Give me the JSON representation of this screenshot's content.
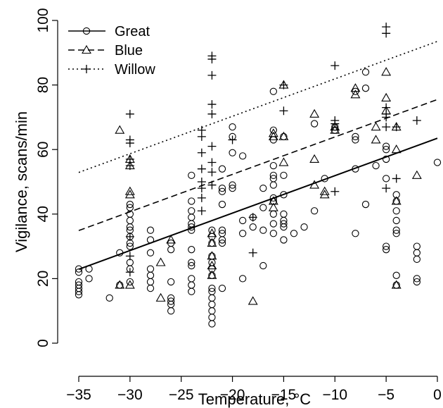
{
  "chart_data": {
    "type": "scatter",
    "xlabel": "Temperature, °C",
    "ylabel": "Vigilance, scans/min",
    "xlim": [
      -36,
      1
    ],
    "ylim": [
      -2,
      103
    ],
    "x_ticks": [
      -35,
      -30,
      -25,
      -20,
      -15,
      -10,
      -5,
      0
    ],
    "y_ticks": [
      0,
      20,
      40,
      60,
      80,
      100
    ],
    "x_tick_labels": [
      "−35",
      "−30",
      "−25",
      "−20",
      "−15",
      "−10",
      "−5",
      "0"
    ],
    "y_tick_labels": [
      "0",
      "20",
      "40",
      "60",
      "80",
      "100"
    ],
    "grid": false,
    "legend_position": "top-left",
    "series": [
      {
        "name": "Great",
        "marker": "circle",
        "line_style": "solid",
        "fit": {
          "intercept": 63.5,
          "slope": 1.16
        },
        "points": [
          [
            -35,
            23
          ],
          [
            -35,
            22
          ],
          [
            -35,
            19
          ],
          [
            -35,
            18
          ],
          [
            -35,
            17
          ],
          [
            -35,
            16
          ],
          [
            -35,
            15
          ],
          [
            -34,
            23
          ],
          [
            -34,
            20
          ],
          [
            -32,
            14
          ],
          [
            -31,
            28
          ],
          [
            -31,
            18
          ],
          [
            -30,
            43
          ],
          [
            -30,
            42
          ],
          [
            -30,
            40
          ],
          [
            -30,
            38
          ],
          [
            -30,
            36
          ],
          [
            -30,
            35
          ],
          [
            -30,
            33
          ],
          [
            -30,
            31
          ],
          [
            -30,
            30
          ],
          [
            -30,
            25
          ],
          [
            -30,
            23
          ],
          [
            -30,
            19
          ],
          [
            -28,
            35
          ],
          [
            -28,
            32
          ],
          [
            -28,
            28
          ],
          [
            -28,
            23
          ],
          [
            -28,
            21
          ],
          [
            -28,
            19
          ],
          [
            -28,
            17
          ],
          [
            -26,
            31
          ],
          [
            -26,
            29
          ],
          [
            -26,
            19
          ],
          [
            -26,
            14
          ],
          [
            -26,
            13
          ],
          [
            -26,
            12
          ],
          [
            -26,
            10
          ],
          [
            -24,
            52
          ],
          [
            -24,
            44
          ],
          [
            -24,
            41
          ],
          [
            -24,
            39
          ],
          [
            -24,
            37
          ],
          [
            -24,
            36
          ],
          [
            -24,
            35
          ],
          [
            -24,
            29
          ],
          [
            -24,
            25
          ],
          [
            -24,
            24
          ],
          [
            -24,
            20
          ],
          [
            -24,
            18
          ],
          [
            -24,
            16
          ],
          [
            -22,
            35
          ],
          [
            -22,
            33
          ],
          [
            -22,
            31
          ],
          [
            -22,
            27
          ],
          [
            -22,
            25
          ],
          [
            -22,
            23
          ],
          [
            -22,
            21
          ],
          [
            -22,
            17
          ],
          [
            -22,
            16
          ],
          [
            -22,
            14
          ],
          [
            -22,
            12
          ],
          [
            -22,
            10
          ],
          [
            -22,
            8
          ],
          [
            -22,
            6
          ],
          [
            -21,
            54
          ],
          [
            -21,
            48
          ],
          [
            -21,
            47
          ],
          [
            -21,
            43
          ],
          [
            -21,
            35
          ],
          [
            -21,
            34
          ],
          [
            -21,
            32
          ],
          [
            -21,
            31
          ],
          [
            -21,
            17
          ],
          [
            -20,
            67
          ],
          [
            -20,
            64
          ],
          [
            -20,
            59
          ],
          [
            -20,
            49
          ],
          [
            -20,
            48
          ],
          [
            -19,
            58
          ],
          [
            -19,
            38
          ],
          [
            -19,
            34
          ],
          [
            -19,
            20
          ],
          [
            -18,
            39
          ],
          [
            -18,
            36
          ],
          [
            -17,
            48
          ],
          [
            -17,
            42
          ],
          [
            -17,
            35
          ],
          [
            -17,
            24
          ],
          [
            -16,
            78
          ],
          [
            -16,
            66
          ],
          [
            -16,
            63
          ],
          [
            -16,
            55
          ],
          [
            -16,
            52
          ],
          [
            -16,
            51
          ],
          [
            -16,
            49
          ],
          [
            -16,
            45
          ],
          [
            -16,
            44
          ],
          [
            -16,
            40
          ],
          [
            -16,
            37
          ],
          [
            -16,
            34
          ],
          [
            -15,
            64
          ],
          [
            -15,
            52
          ],
          [
            -15,
            46
          ],
          [
            -15,
            40
          ],
          [
            -15,
            38
          ],
          [
            -15,
            37
          ],
          [
            -15,
            36
          ],
          [
            -15,
            32
          ],
          [
            -14,
            34
          ],
          [
            -13,
            36
          ],
          [
            -12,
            68
          ],
          [
            -12,
            41
          ],
          [
            -11,
            51
          ],
          [
            -10,
            67
          ],
          [
            -10,
            66
          ],
          [
            -8,
            78
          ],
          [
            -8,
            64
          ],
          [
            -8,
            63
          ],
          [
            -8,
            54
          ],
          [
            -8,
            34
          ],
          [
            -7,
            84
          ],
          [
            -7,
            79
          ],
          [
            -7,
            43
          ],
          [
            -6,
            55
          ],
          [
            -5,
            61
          ],
          [
            -5,
            60
          ],
          [
            -5,
            57
          ],
          [
            -5,
            51
          ],
          [
            -5,
            30
          ],
          [
            -5,
            29
          ],
          [
            -4,
            46
          ],
          [
            -4,
            44
          ],
          [
            -4,
            41
          ],
          [
            -4,
            38
          ],
          [
            -4,
            35
          ],
          [
            -4,
            34
          ],
          [
            -4,
            21
          ],
          [
            -4,
            18
          ],
          [
            -2,
            30
          ],
          [
            -2,
            28
          ],
          [
            -2,
            26
          ],
          [
            -2,
            20
          ],
          [
            -2,
            19
          ],
          [
            0,
            56
          ]
        ]
      },
      {
        "name": "Blue",
        "marker": "triangle",
        "line_style": "dashed",
        "fit": {
          "intercept": 75.5,
          "slope": 1.16
        },
        "points": [
          [
            -31,
            66
          ],
          [
            -31,
            18
          ],
          [
            -30,
            57
          ],
          [
            -30,
            55
          ],
          [
            -30,
            47
          ],
          [
            -30,
            46
          ],
          [
            -30,
            18
          ],
          [
            -27,
            25
          ],
          [
            -27,
            14
          ],
          [
            -26,
            32
          ],
          [
            -22,
            34
          ],
          [
            -22,
            31
          ],
          [
            -22,
            27
          ],
          [
            -22,
            24
          ],
          [
            -22,
            21
          ],
          [
            -18,
            13
          ],
          [
            -16,
            65
          ],
          [
            -16,
            64
          ],
          [
            -16,
            44
          ],
          [
            -16,
            42
          ],
          [
            -15,
            80
          ],
          [
            -15,
            64
          ],
          [
            -15,
            56
          ],
          [
            -12,
            71
          ],
          [
            -12,
            57
          ],
          [
            -12,
            49
          ],
          [
            -11,
            47
          ],
          [
            -11,
            46
          ],
          [
            -10,
            67
          ],
          [
            -10,
            66
          ],
          [
            -8,
            79
          ],
          [
            -8,
            77
          ],
          [
            -6,
            67
          ],
          [
            -6,
            63
          ],
          [
            -5,
            84
          ],
          [
            -5,
            76
          ],
          [
            -5,
            72
          ],
          [
            -4,
            67
          ],
          [
            -4,
            60
          ],
          [
            -4,
            44
          ],
          [
            -4,
            18
          ],
          [
            -2,
            52
          ]
        ]
      },
      {
        "name": "Willow",
        "marker": "plus",
        "line_style": "dotted",
        "fit": {
          "intercept": 93.5,
          "slope": 1.16
        },
        "points": [
          [
            -30,
            71
          ],
          [
            -30,
            63
          ],
          [
            -30,
            62
          ],
          [
            -30,
            57
          ],
          [
            -30,
            55
          ],
          [
            -30,
            33
          ],
          [
            -30,
            27
          ],
          [
            -30,
            22
          ],
          [
            -23,
            66
          ],
          [
            -23,
            64
          ],
          [
            -23,
            59
          ],
          [
            -23,
            54
          ],
          [
            -23,
            50
          ],
          [
            -23,
            48
          ],
          [
            -23,
            45
          ],
          [
            -23,
            41
          ],
          [
            -22,
            89
          ],
          [
            -22,
            88
          ],
          [
            -22,
            83
          ],
          [
            -22,
            74
          ],
          [
            -22,
            71
          ],
          [
            -22,
            61
          ],
          [
            -22,
            56
          ],
          [
            -22,
            53
          ],
          [
            -22,
            49
          ],
          [
            -20,
            63
          ],
          [
            -18,
            39
          ],
          [
            -18,
            28
          ],
          [
            -15,
            80
          ],
          [
            -15,
            72
          ],
          [
            -10,
            86
          ],
          [
            -10,
            69
          ],
          [
            -10,
            68
          ],
          [
            -10,
            47
          ],
          [
            -5,
            98
          ],
          [
            -5,
            96
          ],
          [
            -5,
            73
          ],
          [
            -5,
            71
          ],
          [
            -5,
            70
          ],
          [
            -5,
            67
          ],
          [
            -5,
            48
          ],
          [
            -4,
            67
          ],
          [
            -4,
            51
          ],
          [
            -2,
            69
          ]
        ]
      }
    ]
  }
}
